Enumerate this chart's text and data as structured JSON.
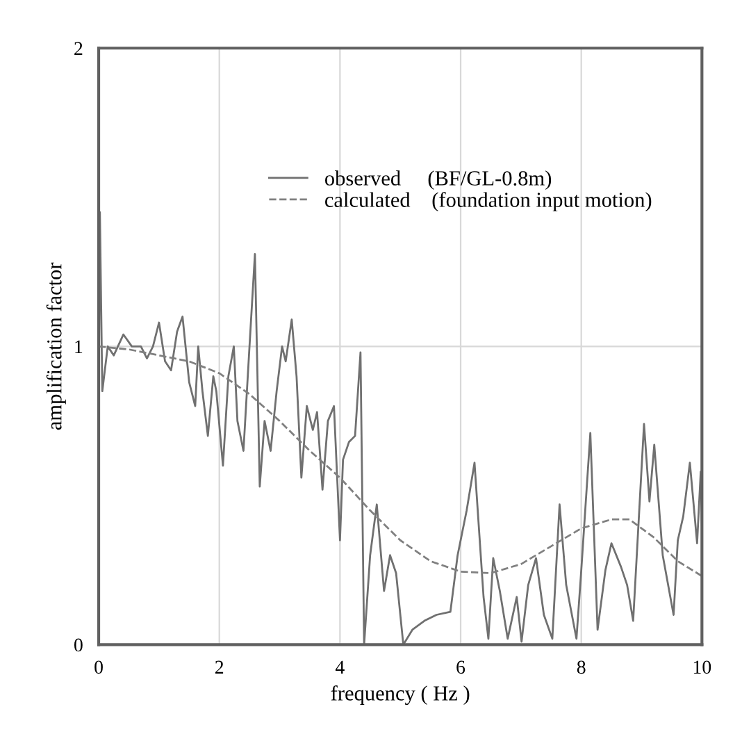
{
  "chart_data": {
    "type": "line",
    "xlabel": "frequency ( Hz )",
    "ylabel": "amplification factor",
    "xlim": [
      0,
      10
    ],
    "ylim": [
      0,
      2
    ],
    "xticks": [
      0,
      2,
      4,
      6,
      8,
      10
    ],
    "yticks": [
      0,
      1,
      2
    ],
    "grid": true,
    "legend": "top",
    "series": [
      {
        "name": "observed     (BF/GL-0.8m)",
        "color": "#707070",
        "line_style": "solid",
        "x": [
          0,
          0.02,
          0.06,
          0.15,
          0.25,
          0.41,
          0.55,
          0.7,
          0.8,
          0.9,
          1.0,
          1.1,
          1.2,
          1.3,
          1.39,
          1.5,
          1.6,
          1.65,
          1.72,
          1.81,
          1.9,
          1.95,
          2.06,
          2.15,
          2.24,
          2.3,
          2.4,
          2.5,
          2.59,
          2.67,
          2.75,
          2.85,
          2.95,
          3.04,
          3.1,
          3.2,
          3.28,
          3.36,
          3.45,
          3.55,
          3.62,
          3.71,
          3.8,
          3.9,
          4.0,
          4.05,
          4.15,
          4.25,
          4.34,
          4.4,
          4.5,
          4.61,
          4.73,
          4.83,
          4.93,
          5.05,
          5.2,
          5.4,
          5.6,
          5.83,
          5.95,
          6.1,
          6.23,
          6.38,
          6.46,
          6.54,
          6.65,
          6.78,
          6.93,
          7.01,
          7.12,
          7.25,
          7.38,
          7.52,
          7.64,
          7.75,
          7.92,
          8.0,
          8.15,
          8.27,
          8.4,
          8.5,
          8.66,
          8.76,
          8.86,
          9.04,
          9.13,
          9.21,
          9.35,
          9.53,
          9.6,
          9.69,
          9.8,
          9.92,
          9.98,
          10.0
        ],
        "values": [
          0.8,
          1.45,
          0.85,
          1.0,
          0.97,
          1.04,
          1.0,
          1.0,
          0.96,
          1.0,
          1.08,
          0.95,
          0.92,
          1.05,
          1.1,
          0.88,
          0.8,
          1.0,
          0.85,
          0.7,
          0.9,
          0.85,
          0.6,
          0.9,
          1.0,
          0.75,
          0.65,
          1.0,
          1.31,
          0.53,
          0.75,
          0.65,
          0.85,
          1.0,
          0.95,
          1.09,
          0.9,
          0.56,
          0.8,
          0.72,
          0.78,
          0.52,
          0.75,
          0.8,
          0.35,
          0.62,
          0.68,
          0.7,
          0.98,
          0.0,
          0.3,
          0.47,
          0.18,
          0.3,
          0.24,
          0.0,
          0.05,
          0.08,
          0.1,
          0.11,
          0.3,
          0.45,
          0.61,
          0.16,
          0.02,
          0.29,
          0.18,
          0.02,
          0.16,
          0.01,
          0.2,
          0.29,
          0.1,
          0.02,
          0.47,
          0.2,
          0.02,
          0.25,
          0.71,
          0.05,
          0.25,
          0.34,
          0.26,
          0.2,
          0.08,
          0.74,
          0.48,
          0.67,
          0.3,
          0.1,
          0.35,
          0.43,
          0.61,
          0.34,
          0.58,
          0.4
        ]
      },
      {
        "name": "calculated    (foundation input motion)",
        "color": "#808080",
        "line_style": "dashed",
        "x": [
          0,
          0.5,
          1.0,
          1.5,
          2.0,
          2.5,
          3.0,
          3.5,
          4.0,
          4.5,
          5.0,
          5.5,
          6.0,
          6.5,
          7.0,
          7.5,
          8.0,
          8.5,
          8.8,
          9.2,
          9.6,
          10
        ],
        "values": [
          1.0,
          0.99,
          0.97,
          0.95,
          0.91,
          0.84,
          0.75,
          0.65,
          0.56,
          0.45,
          0.35,
          0.28,
          0.245,
          0.24,
          0.27,
          0.33,
          0.39,
          0.42,
          0.42,
          0.36,
          0.28,
          0.23
        ]
      }
    ]
  }
}
